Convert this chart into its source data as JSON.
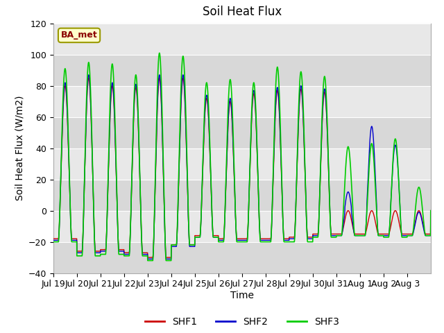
{
  "title": "Soil Heat Flux",
  "xlabel": "Time",
  "ylabel": "Soil Heat Flux (W/m2)",
  "ylim": [
    -40,
    120
  ],
  "yticks": [
    -40,
    -20,
    0,
    20,
    40,
    60,
    80,
    100,
    120
  ],
  "bg_color": "#ffffff",
  "plot_bg_color": "#e8e8e8",
  "series_colors": [
    "#cc0000",
    "#0000cc",
    "#00cc00"
  ],
  "series_labels": [
    "SHF1",
    "SHF2",
    "SHF3"
  ],
  "station_label": "BA_met",
  "xtick_labels": [
    "Jul 19",
    "Jul 20",
    "Jul 21",
    "Jul 22",
    "Jul 23",
    "Jul 24",
    "Jul 25",
    "Jul 26",
    "Jul 27",
    "Jul 28",
    "Jul 29",
    "Jul 30",
    "Jul 31",
    "Aug 1",
    "Aug 2",
    "Aug 3"
  ],
  "n_days": 16,
  "title_fontsize": 12,
  "label_fontsize": 10,
  "tick_fontsize": 9,
  "day_peaks_shf1": [
    80,
    85,
    80,
    79,
    85,
    85,
    72,
    70,
    75,
    77,
    78,
    76,
    0,
    0,
    0,
    0
  ],
  "day_peaks_shf2": [
    80,
    85,
    80,
    79,
    85,
    85,
    72,
    70,
    75,
    77,
    78,
    76,
    10,
    52,
    40,
    0
  ],
  "day_peaks_shf3": [
    91,
    95,
    94,
    87,
    101,
    99,
    82,
    84,
    82,
    92,
    89,
    86,
    41,
    43,
    46,
    15
  ],
  "day_troughs_shf1": [
    -18,
    -26,
    -25,
    -27,
    -30,
    -22,
    -16,
    -18,
    -18,
    -18,
    -17,
    -15,
    -15,
    -15,
    -15,
    -15
  ],
  "day_troughs_shf2": [
    -18,
    -26,
    -25,
    -27,
    -30,
    -22,
    -16,
    -18,
    -18,
    -18,
    -17,
    -15,
    -15,
    -15,
    -15,
    -15
  ],
  "day_troughs_shf3": [
    -20,
    -29,
    -28,
    -29,
    -32,
    -22,
    -17,
    -20,
    -20,
    -20,
    -20,
    -17,
    -16,
    -16,
    -17,
    -16
  ]
}
